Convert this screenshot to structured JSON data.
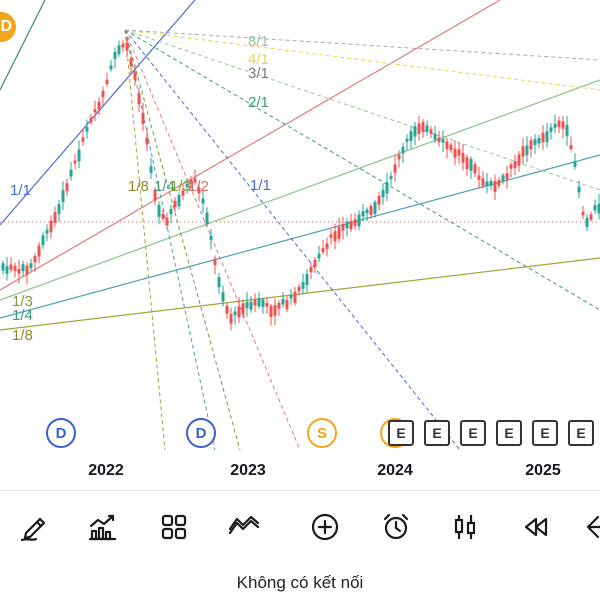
{
  "corner_badge": {
    "text": "D",
    "color": "#f2a51a"
  },
  "fan_labels": [
    {
      "text": "8/1",
      "color": "#9bc29b"
    },
    {
      "text": "4/1",
      "color": "#e9d34f"
    },
    {
      "text": "3/1",
      "color": "#7a7a7a"
    },
    {
      "text": "2/1",
      "color": "#3f9a7a"
    },
    {
      "text": "1/1",
      "color": "#4a6bd6"
    },
    {
      "text": "1/1",
      "color": "#4a6bd6"
    },
    {
      "text": "1/3",
      "color": "#7d9a3a"
    },
    {
      "text": "1/4",
      "color": "#3f9a7a"
    },
    {
      "text": "1/8",
      "color": "#8a8a2a"
    },
    {
      "text": "1/8",
      "color": "#8a8a2a"
    },
    {
      "text": "1/4",
      "color": "#3f9a7a"
    },
    {
      "text": "1/3",
      "color": "#7d9a3a"
    },
    {
      "text": "1/2",
      "color": "#d66a6a"
    }
  ],
  "event_markers": [
    {
      "type": "D",
      "color": "#3a5fcd"
    },
    {
      "type": "D",
      "color": "#3a5fcd"
    },
    {
      "type": "S",
      "color": "#f2a51a"
    }
  ],
  "earnings_markers": [
    "E",
    "E",
    "E",
    "E",
    "E",
    "E"
  ],
  "x_axis_labels": [
    "2022",
    "2023",
    "2024",
    "2025"
  ],
  "toolbar": {
    "items": [
      {
        "icon": "pencil-draw-icon"
      },
      {
        "icon": "chart-indicator-icon"
      },
      {
        "icon": "grid-layout-icon"
      },
      {
        "icon": "line-chart-style-icon"
      },
      {
        "icon": "add-circle-icon"
      },
      {
        "icon": "alarm-clock-icon"
      },
      {
        "icon": "candlestick-icon"
      },
      {
        "icon": "rewind-icon"
      },
      {
        "icon": "share-icon"
      }
    ]
  },
  "status": {
    "text": "Không có kết nối"
  }
}
